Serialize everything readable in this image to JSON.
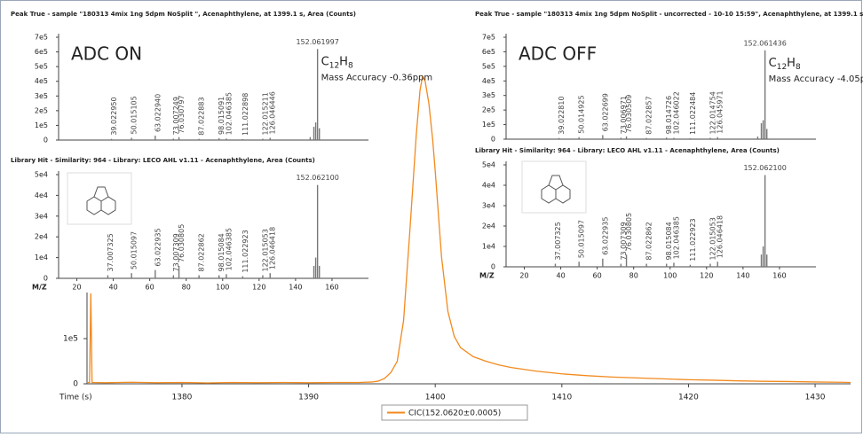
{
  "chart_data": [
    {
      "type": "line",
      "x_label": "Time (s)",
      "x": [
        1372.5,
        1372.7,
        1372.8,
        1372.9,
        1374,
        1376,
        1378,
        1380,
        1382,
        1384,
        1386,
        1388,
        1390,
        1392,
        1394,
        1395,
        1395.5,
        1396,
        1396.5,
        1397,
        1397.5,
        1398,
        1398.5,
        1398.8,
        1399,
        1399.2,
        1399.5,
        1399.8,
        1400,
        1400.5,
        1401,
        1401.5,
        1402,
        1403,
        1404,
        1405,
        1406,
        1408,
        1410,
        1412,
        1414,
        1416,
        1418,
        1420,
        1422,
        1424,
        1426,
        1428,
        1430,
        1432,
        1432.8
      ],
      "series": [
        {
          "name": "CIC(152.0620±0.0005)",
          "color": "#f28a1e",
          "values": [
            3000,
            3000,
            200000,
            3000,
            2500,
            3500,
            2500,
            3000,
            2000,
            3000,
            2500,
            3000,
            2500,
            3000,
            3000,
            4000,
            6000,
            12000,
            25000,
            50000,
            140000,
            340000,
            550000,
            650000,
            680000,
            670000,
            620000,
            540000,
            470000,
            280000,
            160000,
            105000,
            80000,
            60000,
            50000,
            42000,
            36000,
            28000,
            22000,
            18000,
            15000,
            13000,
            11000,
            9000,
            8000,
            6500,
            5500,
            5000,
            4000,
            3500,
            3000
          ]
        }
      ],
      "xlim": [
        1372.5,
        1432.8
      ],
      "xticks": [
        1380,
        1390,
        1400,
        1410,
        1420,
        1430
      ],
      "ylim": [
        0,
        810000
      ],
      "yticks": [
        0,
        {
          "value": 100000,
          "label": "1e5"
        }
      ]
    },
    {
      "type": "bar",
      "title": "Peak True - sample \"180313 4mix 1ng 5dpm NoSplit \", Acenaphthylene, at 1399.1 s, Area (Counts)",
      "annotation": "ADC ON",
      "formula": [
        "C",
        "12",
        "H",
        "8"
      ],
      "note": "Mass Accuracy -0.36ppm",
      "color": "#777777",
      "x": [
        39.02295,
        50.015105,
        63.02294,
        73.007249,
        76.030797,
        87.022883,
        98.015091,
        102.046385,
        111.022898,
        122.015211,
        126.046446,
        148.05,
        150.047,
        151.055,
        152.061997,
        153.065
      ],
      "x_labels": [
        "39.022950",
        "50.015105",
        "63.022940",
        "73.007249",
        "76.030797",
        "87.022883",
        "98.015091",
        "102.046385",
        "111.022898",
        "122.015211",
        "126.046446",
        null,
        null,
        null,
        "152.061997",
        null
      ],
      "values": [
        8000,
        15000,
        30000,
        10000,
        20000,
        8000,
        12000,
        10000,
        6000,
        9000,
        15000,
        20000,
        90000,
        120000,
        620000,
        80000
      ],
      "xlim": [
        10,
        180
      ],
      "ylim": [
        0,
        700000
      ],
      "yticks": [
        0,
        {
          "value": 100000,
          "label": "1e5"
        },
        {
          "value": 200000,
          "label": "2e5"
        },
        {
          "value": 300000,
          "label": "3e5"
        },
        {
          "value": 400000,
          "label": "4e5"
        },
        {
          "value": 500000,
          "label": "5e5"
        },
        {
          "value": 600000,
          "label": "6e5"
        },
        {
          "value": 700000,
          "label": "7e5"
        }
      ]
    },
    {
      "type": "bar",
      "title": "Peak True - sample \"180313 4mix 1ng 5dpm NoSplit - uncorrected - 10-10 15:59\", Acenaphthylene, at 1399.1 s, Area (Counts)",
      "annotation": "ADC OFF",
      "formula": [
        "C",
        "12",
        "H",
        "8"
      ],
      "note": "Mass Accuracy -4.05ppm",
      "color": "#777777",
      "x": [
        39.02281,
        50.014925,
        63.022699,
        73.006971,
        76.030509,
        87.022857,
        98.014726,
        102.046022,
        111.022484,
        122.014754,
        126.045971,
        148.05,
        150.047,
        151.055,
        152.061436,
        153.065
      ],
      "x_labels": [
        "39.022810",
        "50.014925",
        "63.022699",
        "73.006971",
        "76.030509",
        "87.022857",
        "98.014726",
        "102.046022",
        "111.022484",
        "122.014754",
        "126.045971",
        null,
        null,
        null,
        "152.061436",
        null
      ],
      "values": [
        8000,
        14000,
        28000,
        10000,
        19000,
        8000,
        11000,
        9000,
        6000,
        9000,
        14000,
        18000,
        110000,
        130000,
        610000,
        70000
      ],
      "xlim": [
        10,
        180
      ],
      "ylim": [
        0,
        700000
      ],
      "yticks": [
        0,
        {
          "value": 100000,
          "label": "1e5"
        },
        {
          "value": 200000,
          "label": "2e5"
        },
        {
          "value": 300000,
          "label": "3e5"
        },
        {
          "value": 400000,
          "label": "4e5"
        },
        {
          "value": 500000,
          "label": "5e5"
        },
        {
          "value": 600000,
          "label": "6e5"
        },
        {
          "value": 700000,
          "label": "7e5"
        }
      ]
    },
    {
      "type": "bar",
      "title": "Library Hit - Similarity: 964 - Library: LECO AHL v1.11 - Acenaphthylene, Area (Counts)",
      "x_label": "M/Z",
      "color": "#777777",
      "x": [
        37.007325,
        50.015097,
        63.022935,
        73.007309,
        76.030805,
        87.022862,
        98.015084,
        102.046385,
        111.022923,
        122.015053,
        126.046418,
        150.047,
        151.055,
        152.0621,
        153.065
      ],
      "x_labels": [
        "37.007325",
        "50.015097",
        "63.022935",
        "73.007309",
        "76.030805",
        "87.022862",
        "98.015084",
        "102.046385",
        "111.022923",
        "122.015053",
        "126.046418",
        null,
        null,
        "152.062100",
        null
      ],
      "values": [
        1500,
        2500,
        4000,
        1500,
        6000,
        1500,
        1500,
        2000,
        1000,
        1500,
        2500,
        6000,
        10000,
        45000,
        6000
      ],
      "xlim": [
        10,
        180
      ],
      "xticks": [
        20,
        40,
        60,
        80,
        100,
        120,
        140,
        160
      ],
      "ylim": [
        0,
        50000
      ],
      "yticks": [
        0,
        {
          "value": 10000,
          "label": "1e4"
        },
        {
          "value": 20000,
          "label": "2e4"
        },
        {
          "value": 30000,
          "label": "3e4"
        },
        {
          "value": 40000,
          "label": "4e4"
        },
        {
          "value": 50000,
          "label": "5e4"
        }
      ]
    },
    {
      "type": "bar",
      "title": "Library Hit - Similarity: 964 - Library: LECO AHL v1.11 - Acenaphthylene, Area (Counts)",
      "x_label": "M/Z",
      "color": "#777777",
      "x": [
        37.007325,
        50.015097,
        63.022935,
        73.007309,
        76.030805,
        87.022862,
        98.015084,
        102.046385,
        111.022923,
        122.015053,
        126.046418,
        150.047,
        151.055,
        152.0621,
        153.065
      ],
      "x_labels": [
        "37.007325",
        "50.015097",
        "63.022935",
        "73.007309",
        "76.030805",
        "87.022862",
        "98.015084",
        "102.046385",
        "111.022923",
        "122.015053",
        "126.046418",
        null,
        null,
        "152.062100",
        null
      ],
      "values": [
        1500,
        2500,
        4000,
        1500,
        6000,
        1500,
        1500,
        2000,
        1000,
        1500,
        2500,
        6000,
        10000,
        45000,
        6000
      ],
      "xlim": [
        10,
        180
      ],
      "xticks": [
        20,
        40,
        60,
        80,
        100,
        120,
        140,
        160
      ],
      "ylim": [
        0,
        50000
      ],
      "yticks": [
        0,
        {
          "value": 10000,
          "label": "1e4"
        },
        {
          "value": 20000,
          "label": "2e4"
        },
        {
          "value": 30000,
          "label": "3e4"
        },
        {
          "value": 40000,
          "label": "4e4"
        },
        {
          "value": 50000,
          "label": "5e4"
        }
      ]
    }
  ]
}
